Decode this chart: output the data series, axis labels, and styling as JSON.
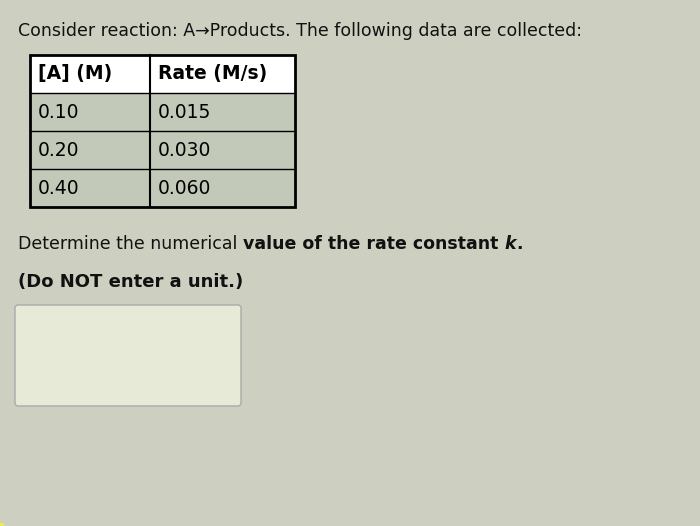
{
  "title_text": "Consider reaction: A→Products. The following data are collected:",
  "col_headers": [
    "[A] (M)",
    "Rate (M/s)"
  ],
  "table_data": [
    [
      "0.10",
      "0.015"
    ],
    [
      "0.20",
      "0.030"
    ],
    [
      "0.40",
      "0.060"
    ]
  ],
  "question_normal": "Determine the numerical ",
  "question_bold": "value of the rate constant ",
  "question_italic_bold": "k",
  "question_end": ".",
  "note_text": "(Do NOT enter a unit.)",
  "bg_color": "#cdd0c0",
  "table_header_bg": "#ffffff",
  "table_row_bg": "#c2c9b8",
  "table_border_color": "#000000",
  "answer_box_bg": "#e8ead8",
  "answer_box_border": "#aaaaaa",
  "note_highlight": "#e8f044",
  "title_fontsize": 12.5,
  "table_header_fontsize": 13.5,
  "table_data_fontsize": 13.5,
  "question_fontsize": 12.5,
  "note_fontsize": 13.0,
  "fig_width": 7.0,
  "fig_height": 5.26,
  "dpi": 100
}
